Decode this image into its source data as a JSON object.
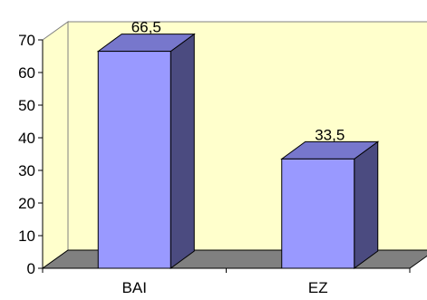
{
  "chart_data": {
    "type": "bar",
    "style": "3d-column",
    "categories": [
      "BAI",
      "EZ"
    ],
    "values": [
      66.5,
      33.5
    ],
    "data_labels": [
      "66,5",
      "33,5"
    ],
    "ylim": [
      0,
      70
    ],
    "yticks": [
      "0",
      "10",
      "20",
      "30",
      "40",
      "50",
      "60",
      "70"
    ],
    "grid": false,
    "legend": "none",
    "colors": {
      "wall": "#ffffcc",
      "floor": "#808080",
      "bar_front": "#9999ff",
      "bar_side": "#4b4b80",
      "bar_top": "#7777cc"
    }
  }
}
